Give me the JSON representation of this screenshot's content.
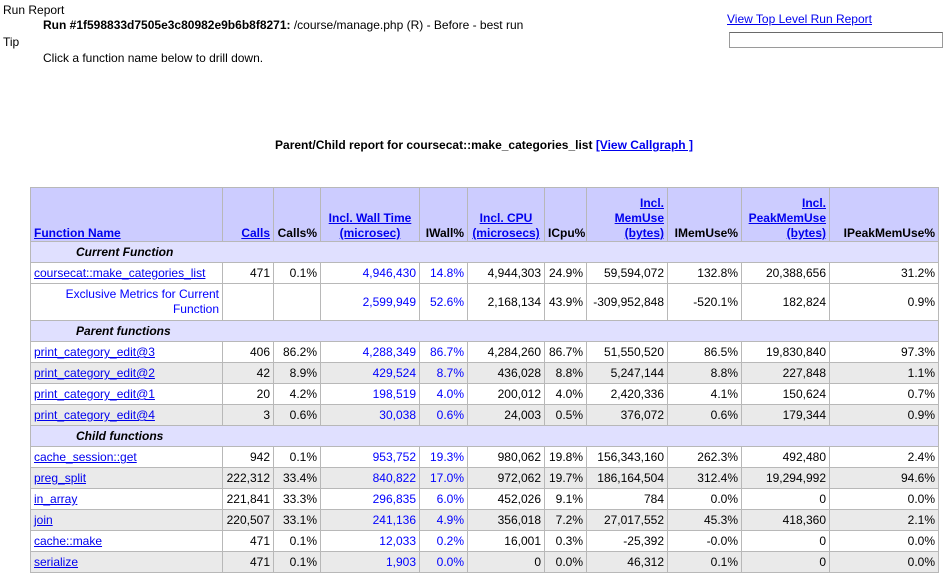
{
  "header": {
    "run_label": "Run Report",
    "run_id": "Run #1f598833d7505e3c80982e9b6b8f8271:",
    "run_desc": " /course/manage.php (R) - Before - best run",
    "tip_label": "Tip",
    "tip_text": "Click a function name below to drill down.",
    "top_link": "View Top Level Run Report",
    "search_value": ""
  },
  "report": {
    "title_prefix": "Parent/Child report for coursecat::make_categories_list",
    "callgraph_link": "[View Callgraph ]"
  },
  "columns": {
    "function_name": "Function Name",
    "calls": "Calls",
    "calls_pct": "Calls%",
    "incl_wall_1": "Incl. Wall Time",
    "incl_wall_2": "(microsec)",
    "iwall_pct": "IWall%",
    "incl_cpu_1": "Incl. CPU",
    "incl_cpu_2": "(microsecs)",
    "icpu_pct": "ICpu%",
    "incl_mem_1": "Incl.",
    "incl_mem_2": "MemUse",
    "incl_mem_3": "(bytes)",
    "imem_pct": "IMemUse%",
    "incl_peak_1": "Incl.",
    "incl_peak_2": "PeakMemUse",
    "incl_peak_3": "(bytes)",
    "ipeak_pct": "IPeakMemUse%"
  },
  "sections": {
    "current": "Current Function",
    "parents": "Parent functions",
    "children": "Child functions"
  },
  "current": {
    "name": "coursecat::make_categories_list",
    "calls": "471",
    "calls_pct": "0.1%",
    "wall": "4,946,430",
    "wall_pct": "14.8%",
    "cpu": "4,944,303",
    "cpu_pct": "24.9%",
    "mem": "59,594,072",
    "mem_pct": "132.8%",
    "peak": "20,388,656",
    "peak_pct": "31.2%"
  },
  "exclusive": {
    "name": "Exclusive Metrics for Current Function",
    "calls": "",
    "calls_pct": "",
    "wall": "2,599,949",
    "wall_pct": "52.6%",
    "cpu": "2,168,134",
    "cpu_pct": "43.9%",
    "mem": "-309,952,848",
    "mem_pct": "-520.1%",
    "peak": "182,824",
    "peak_pct": "0.9%"
  },
  "parents": [
    {
      "name": "print_category_edit@3",
      "calls": "406",
      "calls_pct": "86.2%",
      "wall": "4,288,349",
      "wall_pct": "86.7%",
      "cpu": "4,284,260",
      "cpu_pct": "86.7%",
      "mem": "51,550,520",
      "mem_pct": "86.5%",
      "peak": "19,830,840",
      "peak_pct": "97.3%"
    },
    {
      "name": "print_category_edit@2",
      "calls": "42",
      "calls_pct": "8.9%",
      "wall": "429,524",
      "wall_pct": "8.7%",
      "cpu": "436,028",
      "cpu_pct": "8.8%",
      "mem": "5,247,144",
      "mem_pct": "8.8%",
      "peak": "227,848",
      "peak_pct": "1.1%"
    },
    {
      "name": "print_category_edit@1",
      "calls": "20",
      "calls_pct": "4.2%",
      "wall": "198,519",
      "wall_pct": "4.0%",
      "cpu": "200,012",
      "cpu_pct": "4.0%",
      "mem": "2,420,336",
      "mem_pct": "4.1%",
      "peak": "150,624",
      "peak_pct": "0.7%"
    },
    {
      "name": "print_category_edit@4",
      "calls": "3",
      "calls_pct": "0.6%",
      "wall": "30,038",
      "wall_pct": "0.6%",
      "cpu": "24,003",
      "cpu_pct": "0.5%",
      "mem": "376,072",
      "mem_pct": "0.6%",
      "peak": "179,344",
      "peak_pct": "0.9%"
    }
  ],
  "children": [
    {
      "name": "cache_session::get",
      "calls": "942",
      "calls_pct": "0.1%",
      "wall": "953,752",
      "wall_pct": "19.3%",
      "cpu": "980,062",
      "cpu_pct": "19.8%",
      "mem": "156,343,160",
      "mem_pct": "262.3%",
      "peak": "492,480",
      "peak_pct": "2.4%"
    },
    {
      "name": "preg_split",
      "calls": "222,312",
      "calls_pct": "33.4%",
      "wall": "840,822",
      "wall_pct": "17.0%",
      "cpu": "972,062",
      "cpu_pct": "19.7%",
      "mem": "186,164,504",
      "mem_pct": "312.4%",
      "peak": "19,294,992",
      "peak_pct": "94.6%"
    },
    {
      "name": "in_array",
      "calls": "221,841",
      "calls_pct": "33.3%",
      "wall": "296,835",
      "wall_pct": "6.0%",
      "cpu": "452,026",
      "cpu_pct": "9.1%",
      "mem": "784",
      "mem_pct": "0.0%",
      "peak": "0",
      "peak_pct": "0.0%"
    },
    {
      "name": "join",
      "calls": "220,507",
      "calls_pct": "33.1%",
      "wall": "241,136",
      "wall_pct": "4.9%",
      "cpu": "356,018",
      "cpu_pct": "7.2%",
      "mem": "27,017,552",
      "mem_pct": "45.3%",
      "peak": "418,360",
      "peak_pct": "2.1%"
    },
    {
      "name": "cache::make",
      "calls": "471",
      "calls_pct": "0.1%",
      "wall": "12,033",
      "wall_pct": "0.2%",
      "cpu": "16,001",
      "cpu_pct": "0.3%",
      "mem": "-25,392",
      "mem_pct": "-0.0%",
      "peak": "0",
      "peak_pct": "0.0%"
    },
    {
      "name": "serialize",
      "calls": "471",
      "calls_pct": "0.1%",
      "wall": "1,903",
      "wall_pct": "0.0%",
      "cpu": "0",
      "cpu_pct": "0.0%",
      "mem": "46,312",
      "mem_pct": "0.1%",
      "peak": "0",
      "peak_pct": "0.0%"
    }
  ],
  "colors": {
    "link": "#0000ee",
    "header_bg": "#ccccff",
    "section_bg": "#e0e0ff",
    "row_gray": "#eaeaea",
    "metric_blue": "#0000ff"
  }
}
